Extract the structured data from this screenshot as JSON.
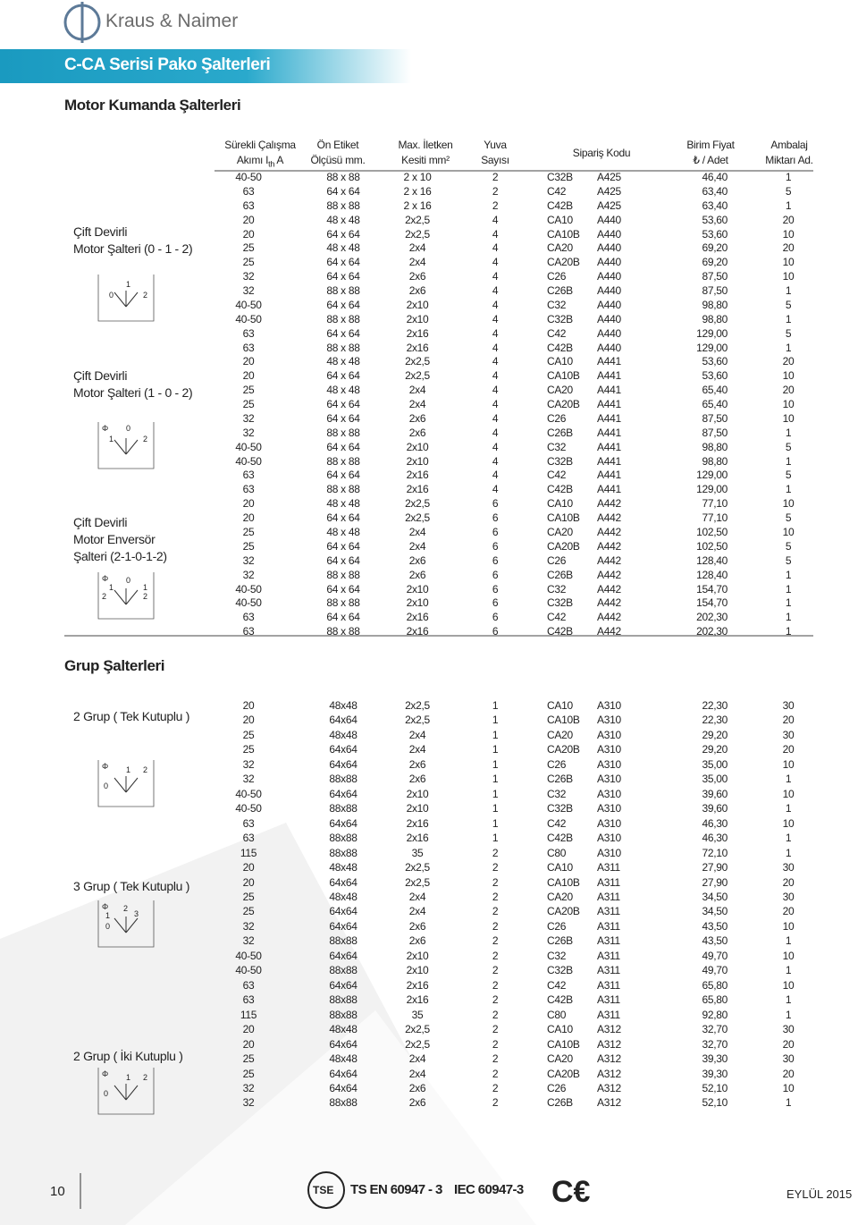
{
  "header": {
    "brand": "Kraus & Naimer",
    "title": "C-CA Serisi Pako Şalterleri"
  },
  "table_header": [
    {
      "line1": "Sürekli Çalışma",
      "line2": "Akımı I",
      "sub": "th",
      "tail": "A"
    },
    {
      "line1": "Ön Etiket",
      "line2": "Ölçüsü mm."
    },
    {
      "line1": "Max. İletken",
      "line2": "Kesiti mm²"
    },
    {
      "line1": "Yuva",
      "line2": "Sayısı"
    },
    {
      "line1": "Sipariş Kodu"
    },
    {
      "line1": "Birim Fiyat",
      "line2": "₺ / Adet"
    },
    {
      "line1": "Ambalaj",
      "line2": "Miktarı Ad."
    }
  ],
  "sections": [
    {
      "title": "Motor Kumanda Şalterleri",
      "groups": [
        {
          "lines": [
            "Çift Devirli",
            "Motor Şalteri (0 - 1 - 2)"
          ],
          "diagram": [
            "0",
            "1",
            "2"
          ]
        },
        {
          "lines": [
            "Çift Devirli",
            "Motor Şalteri (1 - 0 - 2)"
          ],
          "diagram": [
            "Φ",
            "0",
            "1",
            "2"
          ]
        },
        {
          "lines": [
            "Çift Devirli",
            "Motor Enversör",
            "Şalteri (2-1-0-1-2)"
          ],
          "diagram": [
            "Φ",
            "0",
            "1",
            "1",
            "2",
            "2"
          ]
        }
      ],
      "rows": [
        [
          "40-50",
          "88 x 88",
          "2 x 10",
          "2",
          "C32B",
          "A425",
          "46,40",
          "1"
        ],
        [
          "63",
          "64 x 64",
          "2 x 16",
          "2",
          "C42",
          "A425",
          "63,40",
          "5"
        ],
        [
          "63",
          "88 x 88",
          "2 x 16",
          "2",
          "C42B",
          "A425",
          "63,40",
          "1"
        ],
        [
          "20",
          "48 x 48",
          "2x2,5",
          "4",
          "CA10",
          "A440",
          "53,60",
          "20"
        ],
        [
          "20",
          "64 x 64",
          "2x2,5",
          "4",
          "CA10B",
          "A440",
          "53,60",
          "10"
        ],
        [
          "25",
          "48 x 48",
          "2x4",
          "4",
          "CA20",
          "A440",
          "69,20",
          "20"
        ],
        [
          "25",
          "64 x 64",
          "2x4",
          "4",
          "CA20B",
          "A440",
          "69,20",
          "10"
        ],
        [
          "32",
          "64 x 64",
          "2x6",
          "4",
          "C26",
          "A440",
          "87,50",
          "10"
        ],
        [
          "32",
          "88 x 88",
          "2x6",
          "4",
          "C26B",
          "A440",
          "87,50",
          "1"
        ],
        [
          "40-50",
          "64 x 64",
          "2x10",
          "4",
          "C32",
          "A440",
          "98,80",
          "5"
        ],
        [
          "40-50",
          "88 x 88",
          "2x10",
          "4",
          "C32B",
          "A440",
          "98,80",
          "1"
        ],
        [
          "63",
          "64 x 64",
          "2x16",
          "4",
          "C42",
          "A440",
          "129,00",
          "5"
        ],
        [
          "63",
          "88 x 88",
          "2x16",
          "4",
          "C42B",
          "A440",
          "129,00",
          "1"
        ],
        [
          "20",
          "48 x 48",
          "2x2,5",
          "4",
          "CA10",
          "A441",
          "53,60",
          "20"
        ],
        [
          "20",
          "64 x 64",
          "2x2,5",
          "4",
          "CA10B",
          "A441",
          "53,60",
          "10"
        ],
        [
          "25",
          "48 x 48",
          "2x4",
          "4",
          "CA20",
          "A441",
          "65,40",
          "20"
        ],
        [
          "25",
          "64 x 64",
          "2x4",
          "4",
          "CA20B",
          "A441",
          "65,40",
          "10"
        ],
        [
          "32",
          "64 x 64",
          "2x6",
          "4",
          "C26",
          "A441",
          "87,50",
          "10"
        ],
        [
          "32",
          "88 x 88",
          "2x6",
          "4",
          "C26B",
          "A441",
          "87,50",
          "1"
        ],
        [
          "40-50",
          "64 x 64",
          "2x10",
          "4",
          "C32",
          "A441",
          "98,80",
          "5"
        ],
        [
          "40-50",
          "88 x 88",
          "2x10",
          "4",
          "C32B",
          "A441",
          "98,80",
          "1"
        ],
        [
          "63",
          "64 x 64",
          "2x16",
          "4",
          "C42",
          "A441",
          "129,00",
          "5"
        ],
        [
          "63",
          "88 x 88",
          "2x16",
          "4",
          "C42B",
          "A441",
          "129,00",
          "1"
        ],
        [
          "20",
          "48 x 48",
          "2x2,5",
          "6",
          "CA10",
          "A442",
          "77,10",
          "10"
        ],
        [
          "20",
          "64 x 64",
          "2x2,5",
          "6",
          "CA10B",
          "A442",
          "77,10",
          "5"
        ],
        [
          "25",
          "48 x 48",
          "2x4",
          "6",
          "CA20",
          "A442",
          "102,50",
          "10"
        ],
        [
          "25",
          "64 x 64",
          "2x4",
          "6",
          "CA20B",
          "A442",
          "102,50",
          "5"
        ],
        [
          "32",
          "64 x 64",
          "2x6",
          "6",
          "C26",
          "A442",
          "128,40",
          "5"
        ],
        [
          "32",
          "88 x 88",
          "2x6",
          "6",
          "C26B",
          "A442",
          "128,40",
          "1"
        ],
        [
          "40-50",
          "64 x 64",
          "2x10",
          "6",
          "C32",
          "A442",
          "154,70",
          "1"
        ],
        [
          "40-50",
          "88 x 88",
          "2x10",
          "6",
          "C32B",
          "A442",
          "154,70",
          "1"
        ],
        [
          "63",
          "64 x 64",
          "2x16",
          "6",
          "C42",
          "A442",
          "202,30",
          "1"
        ],
        [
          "63",
          "88 x 88",
          "2x16",
          "6",
          "C42B",
          "A442",
          "202,30",
          "1"
        ]
      ]
    },
    {
      "title": "Grup Şalterleri",
      "groups": [
        {
          "lines": [
            "2 Grup ( Tek Kutuplu )"
          ],
          "diagram": [
            "Φ",
            "1",
            "2",
            "0"
          ]
        },
        {
          "lines": [
            "3 Grup ( Tek Kutuplu )"
          ],
          "diagram": [
            "Φ",
            "2",
            "3",
            "1",
            "0"
          ]
        },
        {
          "lines": [
            "2 Grup ( İki Kutuplu )"
          ],
          "diagram": [
            "Φ",
            "1",
            "2",
            "0"
          ]
        }
      ],
      "rows": [
        [
          "20",
          "48x48",
          "2x2,5",
          "1",
          "CA10",
          "A310",
          "22,30",
          "30"
        ],
        [
          "20",
          "64x64",
          "2x2,5",
          "1",
          "CA10B",
          "A310",
          "22,30",
          "20"
        ],
        [
          "25",
          "48x48",
          "2x4",
          "1",
          "CA20",
          "A310",
          "29,20",
          "30"
        ],
        [
          "25",
          "64x64",
          "2x4",
          "1",
          "CA20B",
          "A310",
          "29,20",
          "20"
        ],
        [
          "32",
          "64x64",
          "2x6",
          "1",
          "C26",
          "A310",
          "35,00",
          "10"
        ],
        [
          "32",
          "88x88",
          "2x6",
          "1",
          "C26B",
          "A310",
          "35,00",
          "1"
        ],
        [
          "40-50",
          "64x64",
          "2x10",
          "1",
          "C32",
          "A310",
          "39,60",
          "10"
        ],
        [
          "40-50",
          "88x88",
          "2x10",
          "1",
          "C32B",
          "A310",
          "39,60",
          "1"
        ],
        [
          "63",
          "64x64",
          "2x16",
          "1",
          "C42",
          "A310",
          "46,30",
          "10"
        ],
        [
          "63",
          "88x88",
          "2x16",
          "1",
          "C42B",
          "A310",
          "46,30",
          "1"
        ],
        [
          "115",
          "88x88",
          "35",
          "2",
          "C80",
          "A310",
          "72,10",
          "1"
        ],
        [
          "20",
          "48x48",
          "2x2,5",
          "2",
          "CA10",
          "A311",
          "27,90",
          "30"
        ],
        [
          "20",
          "64x64",
          "2x2,5",
          "2",
          "CA10B",
          "A311",
          "27,90",
          "20"
        ],
        [
          "25",
          "48x48",
          "2x4",
          "2",
          "CA20",
          "A311",
          "34,50",
          "30"
        ],
        [
          "25",
          "64x64",
          "2x4",
          "2",
          "CA20B",
          "A311",
          "34,50",
          "20"
        ],
        [
          "32",
          "64x64",
          "2x6",
          "2",
          "C26",
          "A311",
          "43,50",
          "10"
        ],
        [
          "32",
          "88x88",
          "2x6",
          "2",
          "C26B",
          "A311",
          "43,50",
          "1"
        ],
        [
          "40-50",
          "64x64",
          "2x10",
          "2",
          "C32",
          "A311",
          "49,70",
          "10"
        ],
        [
          "40-50",
          "88x88",
          "2x10",
          "2",
          "C32B",
          "A311",
          "49,70",
          "1"
        ],
        [
          "63",
          "64x64",
          "2x16",
          "2",
          "C42",
          "A311",
          "65,80",
          "10"
        ],
        [
          "63",
          "88x88",
          "2x16",
          "2",
          "C42B",
          "A311",
          "65,80",
          "1"
        ],
        [
          "115",
          "88x88",
          "35",
          "2",
          "C80",
          "A311",
          "92,80",
          "1"
        ],
        [
          "20",
          "48x48",
          "2x2,5",
          "2",
          "CA10",
          "A312",
          "32,70",
          "30"
        ],
        [
          "20",
          "64x64",
          "2x2,5",
          "2",
          "CA10B",
          "A312",
          "32,70",
          "20"
        ],
        [
          "25",
          "48x48",
          "2x4",
          "2",
          "CA20",
          "A312",
          "39,30",
          "30"
        ],
        [
          "25",
          "64x64",
          "2x4",
          "2",
          "CA20B",
          "A312",
          "39,30",
          "20"
        ],
        [
          "32",
          "64x64",
          "2x6",
          "2",
          "C26",
          "A312",
          "52,10",
          "10"
        ],
        [
          "32",
          "88x88",
          "2x6",
          "2",
          "C26B",
          "A312",
          "52,10",
          "1"
        ]
      ]
    }
  ],
  "footer": {
    "page": "10",
    "tse": "TSE",
    "standard1": "TS EN 60947 - 3",
    "standard2": "IEC 60947-3",
    "date": "EYLÜL 2015"
  }
}
